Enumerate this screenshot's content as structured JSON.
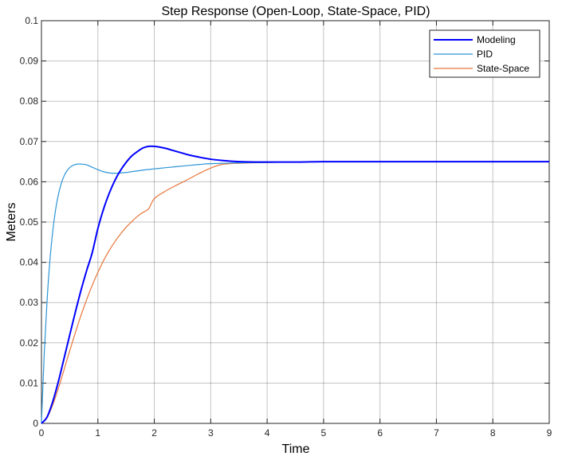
{
  "chart_data": {
    "type": "line",
    "title": "Step Response (Open-Loop, State-Space, PID)",
    "xlabel": "Time",
    "ylabel": "Meters",
    "xlim": [
      0,
      9
    ],
    "ylim": [
      0,
      0.1
    ],
    "xticks": [
      0,
      1,
      2,
      3,
      4,
      5,
      6,
      7,
      8,
      9
    ],
    "xtick_labels": [
      "0",
      "1",
      "2",
      "3",
      "4",
      "5",
      "6",
      "7",
      "8",
      "9"
    ],
    "yticks": [
      0,
      0.01,
      0.02,
      0.03,
      0.04,
      0.05,
      0.06,
      0.07,
      0.08,
      0.09,
      0.1
    ],
    "ytick_labels": [
      "0",
      "0.01",
      "0.02",
      "0.03",
      "0.04",
      "0.05",
      "0.06",
      "0.07",
      "0.08",
      "0.09",
      "0.1"
    ],
    "grid": true,
    "legend_position": "top-right",
    "series": [
      {
        "name": "Modeling",
        "color": "#0000ff",
        "x": [
          0,
          0.1,
          0.2,
          0.3,
          0.4,
          0.5,
          0.6,
          0.7,
          0.8,
          0.9,
          1.0,
          1.1,
          1.2,
          1.3,
          1.4,
          1.5,
          1.6,
          1.7,
          1.8,
          1.9,
          2.0,
          2.1,
          2.2,
          2.3,
          2.4,
          2.5,
          2.6,
          2.8,
          3.0,
          3.2,
          3.5,
          3.8,
          4.2,
          4.6,
          5.0,
          6.0,
          7.0,
          8.0,
          9.0
        ],
        "y": [
          0,
          0.0016,
          0.0054,
          0.0104,
          0.0161,
          0.0219,
          0.0276,
          0.033,
          0.0379,
          0.0424,
          0.0484,
          0.0532,
          0.0571,
          0.0603,
          0.0628,
          0.0648,
          0.0664,
          0.0675,
          0.0684,
          0.0688,
          0.0688,
          0.0686,
          0.0683,
          0.0679,
          0.0675,
          0.0671,
          0.0667,
          0.0661,
          0.0656,
          0.0653,
          0.065,
          0.0649,
          0.0649,
          0.0649,
          0.065,
          0.065,
          0.065,
          0.065,
          0.065
        ]
      },
      {
        "name": "PID",
        "color": "#2b94d6",
        "x": [
          0,
          0.05,
          0.1,
          0.15,
          0.2,
          0.25,
          0.3,
          0.35,
          0.4,
          0.45,
          0.5,
          0.55,
          0.6,
          0.65,
          0.7,
          0.8,
          0.9,
          1.0,
          1.1,
          1.2,
          1.3,
          1.4,
          1.5,
          1.6,
          1.8,
          2.0,
          2.2,
          2.5,
          2.8,
          3.0,
          3.5,
          4.0,
          4.5,
          5.0,
          6.0,
          7.0,
          8.0,
          9.0
        ],
        "y": [
          0,
          0.0175,
          0.0306,
          0.0405,
          0.0477,
          0.053,
          0.0568,
          0.0595,
          0.0614,
          0.0627,
          0.0635,
          0.064,
          0.0643,
          0.0644,
          0.0644,
          0.0642,
          0.0636,
          0.063,
          0.0625,
          0.0622,
          0.0621,
          0.0622,
          0.0623,
          0.0625,
          0.0629,
          0.0632,
          0.0635,
          0.0639,
          0.0643,
          0.0645,
          0.0647,
          0.0648,
          0.0649,
          0.065,
          0.065,
          0.065,
          0.065,
          0.065
        ]
      },
      {
        "name": "State-Space",
        "color": "#e8763a",
        "x": [
          0,
          0.1,
          0.2,
          0.3,
          0.4,
          0.5,
          0.6,
          0.7,
          0.8,
          0.9,
          1.0,
          1.1,
          1.2,
          1.3,
          1.4,
          1.5,
          1.6,
          1.7,
          1.8,
          1.9,
          2.0,
          2.2,
          2.4,
          2.6,
          2.8,
          3.0,
          3.2,
          3.5,
          4.0,
          4.5,
          5.0,
          6.0,
          7.0,
          8.0,
          9.0
        ],
        "y": [
          0,
          0.0014,
          0.0046,
          0.0087,
          0.0133,
          0.018,
          0.0225,
          0.0268,
          0.0307,
          0.0343,
          0.0375,
          0.0404,
          0.0429,
          0.0451,
          0.047,
          0.0487,
          0.0501,
          0.0514,
          0.0524,
          0.0533,
          0.0558,
          0.0577,
          0.0592,
          0.0606,
          0.0621,
          0.0634,
          0.0643,
          0.0646,
          0.0648,
          0.0649,
          0.065,
          0.065,
          0.065,
          0.065,
          0.065
        ]
      }
    ]
  }
}
